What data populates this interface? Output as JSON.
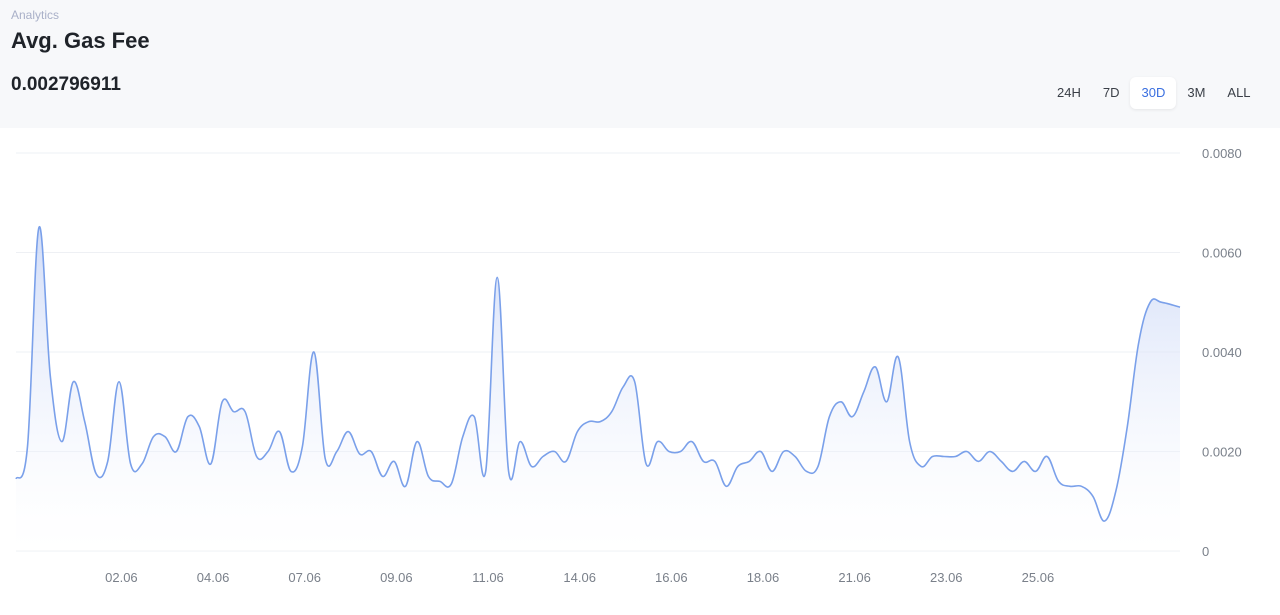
{
  "header": {
    "breadcrumb": "Analytics",
    "title": "Avg. Gas Fee",
    "value": "0.002796911"
  },
  "range_tabs": [
    {
      "label": "24H",
      "active": false
    },
    {
      "label": "7D",
      "active": false
    },
    {
      "label": "30D",
      "active": true
    },
    {
      "label": "3M",
      "active": false
    },
    {
      "label": "ALL",
      "active": false
    }
  ],
  "colors": {
    "line": "#7aa0ea",
    "fill_top": "#c9d6f6",
    "grid": "#eef0f4",
    "active_tab": "#3a6fe0"
  },
  "chart_data": {
    "type": "area",
    "title": "Avg. Gas Fee",
    "xlabel": "",
    "ylabel": "",
    "ylim": [
      0,
      0.008
    ],
    "y_ticks": [
      "0",
      "0.0020",
      "0.0040",
      "0.0060",
      "0.0080"
    ],
    "y_tick_values": [
      0,
      0.002,
      0.004,
      0.006,
      0.008
    ],
    "x_ticks": [
      "02.06",
      "04.06",
      "07.06",
      "09.06",
      "11.06",
      "14.06",
      "16.06",
      "18.06",
      "21.06",
      "23.06",
      "25.06"
    ],
    "x_tick_positions": [
      2.3,
      4.3,
      6.3,
      8.3,
      10.3,
      12.3,
      14.3,
      16.3,
      18.3,
      20.3,
      22.3
    ],
    "xlim": [
      0,
      25.4
    ],
    "grid": true,
    "series": [
      {
        "values": [
          [
            0.0,
            0.00145
          ],
          [
            0.25,
            0.0021
          ],
          [
            0.5,
            0.0065
          ],
          [
            0.75,
            0.0035
          ],
          [
            1.0,
            0.0022
          ],
          [
            1.25,
            0.0034
          ],
          [
            1.5,
            0.0026
          ],
          [
            1.75,
            0.00155
          ],
          [
            2.0,
            0.0018
          ],
          [
            2.25,
            0.0034
          ],
          [
            2.5,
            0.00175
          ],
          [
            2.75,
            0.00175
          ],
          [
            3.0,
            0.0023
          ],
          [
            3.25,
            0.0023
          ],
          [
            3.5,
            0.002
          ],
          [
            3.75,
            0.0027
          ],
          [
            4.0,
            0.0025
          ],
          [
            4.25,
            0.00175
          ],
          [
            4.5,
            0.003
          ],
          [
            4.75,
            0.0028
          ],
          [
            5.0,
            0.0028
          ],
          [
            5.25,
            0.0019
          ],
          [
            5.5,
            0.002
          ],
          [
            5.75,
            0.0024
          ],
          [
            6.0,
            0.0016
          ],
          [
            6.25,
            0.0021
          ],
          [
            6.5,
            0.004
          ],
          [
            6.75,
            0.00185
          ],
          [
            7.0,
            0.002
          ],
          [
            7.25,
            0.0024
          ],
          [
            7.5,
            0.00195
          ],
          [
            7.75,
            0.002
          ],
          [
            8.0,
            0.0015
          ],
          [
            8.25,
            0.0018
          ],
          [
            8.5,
            0.0013
          ],
          [
            8.75,
            0.0022
          ],
          [
            9.0,
            0.0015
          ],
          [
            9.25,
            0.0014
          ],
          [
            9.5,
            0.00135
          ],
          [
            9.75,
            0.0023
          ],
          [
            10.0,
            0.0027
          ],
          [
            10.25,
            0.0016
          ],
          [
            10.5,
            0.0055
          ],
          [
            10.75,
            0.0016
          ],
          [
            11.0,
            0.0022
          ],
          [
            11.25,
            0.0017
          ],
          [
            11.5,
            0.0019
          ],
          [
            11.75,
            0.002
          ],
          [
            12.0,
            0.0018
          ],
          [
            12.25,
            0.0024
          ],
          [
            12.5,
            0.0026
          ],
          [
            12.75,
            0.0026
          ],
          [
            13.0,
            0.0028
          ],
          [
            13.25,
            0.0033
          ],
          [
            13.5,
            0.0034
          ],
          [
            13.75,
            0.00175
          ],
          [
            14.0,
            0.0022
          ],
          [
            14.25,
            0.002
          ],
          [
            14.5,
            0.002
          ],
          [
            14.75,
            0.0022
          ],
          [
            15.0,
            0.0018
          ],
          [
            15.25,
            0.0018
          ],
          [
            15.5,
            0.0013
          ],
          [
            15.75,
            0.0017
          ],
          [
            16.0,
            0.0018
          ],
          [
            16.25,
            0.002
          ],
          [
            16.5,
            0.0016
          ],
          [
            16.75,
            0.002
          ],
          [
            17.0,
            0.0019
          ],
          [
            17.25,
            0.0016
          ],
          [
            17.5,
            0.0017
          ],
          [
            17.75,
            0.0027
          ],
          [
            18.0,
            0.003
          ],
          [
            18.25,
            0.0027
          ],
          [
            18.5,
            0.0032
          ],
          [
            18.75,
            0.0037
          ],
          [
            19.0,
            0.003
          ],
          [
            19.25,
            0.0039
          ],
          [
            19.5,
            0.0022
          ],
          [
            19.75,
            0.0017
          ],
          [
            20.0,
            0.0019
          ],
          [
            20.25,
            0.0019
          ],
          [
            20.5,
            0.0019
          ],
          [
            20.75,
            0.002
          ],
          [
            21.0,
            0.0018
          ],
          [
            21.25,
            0.002
          ],
          [
            21.5,
            0.0018
          ],
          [
            21.75,
            0.0016
          ],
          [
            22.0,
            0.0018
          ],
          [
            22.25,
            0.0016
          ],
          [
            22.5,
            0.0019
          ],
          [
            22.75,
            0.0014
          ],
          [
            23.0,
            0.0013
          ],
          [
            23.25,
            0.0013
          ],
          [
            23.5,
            0.0011
          ],
          [
            23.75,
            0.0006
          ],
          [
            24.0,
            0.0012
          ],
          [
            24.25,
            0.0025
          ],
          [
            24.5,
            0.0042
          ],
          [
            24.75,
            0.005
          ],
          [
            25.0,
            0.005
          ],
          [
            25.4,
            0.0049
          ]
        ]
      }
    ]
  }
}
